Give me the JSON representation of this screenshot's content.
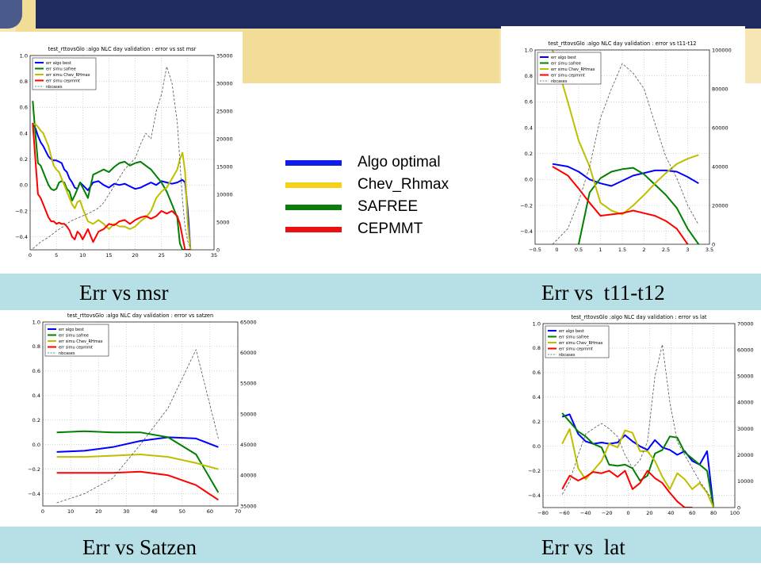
{
  "colors": {
    "algo_best": "#0000ff",
    "safree": "#008000",
    "chev": "#bfbf00",
    "cepmmt": "#ff0000",
    "nbcases": "#555555",
    "caption_bar": "#b7dfe6",
    "legend_blue": "#0d1ee8",
    "legend_yellow": "#f5d21a",
    "legend_green": "#0b7d0b",
    "legend_red": "#e81010"
  },
  "captions": {
    "msr": "Err vs msr",
    "t11": "Err vs  t11-t12",
    "satzen": "Err vs Satzen",
    "lat": "Err vs  lat"
  },
  "legend": {
    "items": [
      {
        "label": "Algo optimal",
        "color": "#0d1ee8"
      },
      {
        "label": "Chev_Rhmax",
        "color": "#f5d21a"
      },
      {
        "label": "SAFREE",
        "color": "#0b7d0b"
      },
      {
        "label": "CEPMMT",
        "color": "#e81010"
      }
    ]
  },
  "chart_data": [
    {
      "id": "msr",
      "type": "line",
      "title": "test_rttovsGlo :algo NLC day validation : error vs sst msr",
      "xlim": [
        0,
        35
      ],
      "ylim": [
        -0.5,
        1.0
      ],
      "y2lim": [
        0,
        35000
      ],
      "xticks": [
        0,
        5,
        10,
        15,
        20,
        25,
        30,
        35
      ],
      "yticks": [
        -0.4,
        -0.2,
        0.0,
        0.2,
        0.4,
        0.6,
        0.8,
        1.0
      ],
      "y2ticks": [
        0,
        5000,
        10000,
        15000,
        20000,
        25000,
        30000,
        35000
      ],
      "legend_labels": [
        "err algo best",
        "err simu safree",
        "err simu Chev_RHmax",
        "err simu cepmmt",
        "nbcases"
      ],
      "x": [
        0.5,
        1,
        1.5,
        2,
        2.5,
        3,
        3.5,
        4,
        4.5,
        5,
        5.5,
        6,
        6.5,
        7,
        7.5,
        8,
        8.5,
        9,
        9.5,
        10,
        11,
        12,
        13,
        14,
        15,
        16,
        17,
        18,
        19,
        20,
        21,
        22,
        23,
        24,
        25,
        26,
        27,
        28,
        28.5,
        29,
        29.5,
        30,
        30.5
      ],
      "series": [
        {
          "name": "err algo best",
          "key": "algo_best",
          "values": [
            0.47,
            0.44,
            0.38,
            0.33,
            0.3,
            0.26,
            0.22,
            0.2,
            0.19,
            0.19,
            0.18,
            0.17,
            0.12,
            0.1,
            0.05,
            0.02,
            -0.02,
            -0.03,
            0.02,
            0.0,
            -0.04,
            0.02,
            0.03,
            0.0,
            -0.02,
            0.01,
            0.0,
            0.01,
            -0.01,
            -0.03,
            -0.02,
            0.0,
            0.02,
            0.0,
            0.03,
            0.02,
            0.01,
            0.02,
            0.03,
            0.04,
            0.02,
            -0.2,
            -0.5
          ]
        },
        {
          "name": "err simu safree",
          "key": "safree",
          "values": [
            0.65,
            0.4,
            0.17,
            0.15,
            0.1,
            0.05,
            0.0,
            -0.03,
            -0.04,
            -0.03,
            0.02,
            0.03,
            0.02,
            -0.03,
            -0.05,
            -0.12,
            -0.08,
            -0.03,
            0.02,
            -0.02,
            -0.1,
            0.08,
            0.1,
            0.12,
            0.1,
            0.14,
            0.17,
            0.18,
            0.15,
            0.17,
            0.18,
            0.15,
            0.12,
            0.07,
            0.02,
            -0.05,
            -0.15,
            -0.25,
            -0.45,
            -0.5,
            -0.5,
            -0.5,
            -0.5
          ]
        },
        {
          "name": "err simu Chev_RHmax",
          "key": "chev",
          "values": [
            0.47,
            0.47,
            0.45,
            0.42,
            0.4,
            0.35,
            0.3,
            0.22,
            0.15,
            0.12,
            0.1,
            0.05,
            0.0,
            -0.05,
            -0.1,
            -0.15,
            -0.18,
            -0.13,
            -0.12,
            -0.18,
            -0.28,
            -0.3,
            -0.27,
            -0.3,
            -0.34,
            -0.3,
            -0.32,
            -0.32,
            -0.34,
            -0.32,
            -0.28,
            -0.25,
            -0.2,
            -0.1,
            -0.05,
            -0.02,
            0.05,
            0.12,
            0.2,
            0.25,
            0.1,
            -0.3,
            -0.5
          ]
        },
        {
          "name": "err simu cepmmt",
          "key": "cepmmt",
          "values": [
            0.48,
            0.2,
            -0.07,
            -0.1,
            -0.15,
            -0.2,
            -0.25,
            -0.28,
            -0.28,
            -0.3,
            -0.29,
            -0.3,
            -0.3,
            -0.32,
            -0.35,
            -0.4,
            -0.42,
            -0.36,
            -0.38,
            -0.42,
            -0.34,
            -0.44,
            -0.36,
            -0.34,
            -0.3,
            -0.31,
            -0.28,
            -0.27,
            -0.3,
            -0.27,
            -0.25,
            -0.24,
            -0.26,
            -0.24,
            -0.2,
            -0.22,
            -0.2,
            -0.24,
            -0.3,
            -0.4,
            -0.5,
            -0.5,
            -0.5
          ]
        },
        {
          "name": "nbcases",
          "key": "nbcases",
          "axis": "right",
          "values": [
            200,
            600,
            1000,
            1400,
            1700,
            2000,
            2300,
            2600,
            3000,
            3400,
            3700,
            4000,
            4300,
            4700,
            5000,
            5300,
            5500,
            5700,
            5900,
            6100,
            6500,
            7000,
            7500,
            8500,
            10000,
            11500,
            13000,
            14500,
            15500,
            16500,
            19000,
            21000,
            20000,
            25000,
            28000,
            33000,
            30000,
            23000,
            16000,
            9000,
            4000,
            1500,
            500
          ]
        }
      ]
    },
    {
      "id": "t11",
      "type": "line",
      "title": "test_rttovsGlo :algo NLC day validation : error vs t11-t12",
      "xlim": [
        -0.5,
        3.5
      ],
      "ylim": [
        -0.5,
        1.0
      ],
      "y2lim": [
        0,
        100000
      ],
      "xticks": [
        -0.5,
        0.0,
        0.5,
        1.0,
        1.5,
        2.0,
        2.5,
        3.0,
        3.5
      ],
      "yticks": [
        -0.4,
        -0.2,
        0.0,
        0.2,
        0.4,
        0.6,
        0.8,
        1.0
      ],
      "y2ticks": [
        0,
        20000,
        40000,
        60000,
        80000,
        100000
      ],
      "legend_labels": [
        "err algo best",
        "err simu safree",
        "err simu Chev_RHmax",
        "err simu cepmmt",
        "nbcases"
      ],
      "x": [
        -0.1,
        0.25,
        0.5,
        0.75,
        1.0,
        1.25,
        1.5,
        1.75,
        2.0,
        2.25,
        2.5,
        2.75,
        3.0,
        3.25
      ],
      "series": [
        {
          "name": "err algo best",
          "key": "algo_best",
          "values": [
            0.12,
            0.1,
            0.06,
            0.0,
            -0.03,
            -0.05,
            -0.01,
            0.03,
            0.05,
            0.07,
            0.07,
            0.06,
            0.02,
            -0.03
          ]
        },
        {
          "name": "err simu safree",
          "key": "safree",
          "values": [
            null,
            -0.6,
            -0.5,
            -0.1,
            0.01,
            0.06,
            0.08,
            0.09,
            0.04,
            -0.04,
            -0.12,
            -0.22,
            -0.38,
            -0.5
          ]
        },
        {
          "name": "err simu Chev_RHmax",
          "key": "chev",
          "values": [
            1.0,
            0.6,
            0.3,
            0.1,
            -0.18,
            -0.24,
            -0.27,
            -0.2,
            -0.12,
            -0.03,
            0.05,
            0.12,
            0.16,
            0.19
          ]
        },
        {
          "name": "err simu cepmmt",
          "key": "cepmmt",
          "values": [
            0.1,
            0.03,
            -0.07,
            -0.18,
            -0.28,
            -0.27,
            -0.26,
            -0.24,
            -0.26,
            -0.28,
            -0.32,
            -0.38,
            -0.5,
            null
          ]
        },
        {
          "name": "nbcases",
          "key": "nbcases",
          "axis": "right",
          "values": [
            0,
            8000,
            22000,
            40000,
            65000,
            80000,
            93000,
            88000,
            80000,
            62000,
            45000,
            34000,
            20000,
            10000
          ]
        }
      ]
    },
    {
      "id": "satzen",
      "type": "line",
      "title": "test_rttovsGlo :algo NLC day validation : error vs satzen",
      "xlim": [
        0,
        70
      ],
      "ylim": [
        -0.5,
        1.0
      ],
      "y2lim": [
        35000,
        65000
      ],
      "xticks": [
        0,
        10,
        20,
        30,
        40,
        50,
        60,
        70
      ],
      "yticks": [
        -0.4,
        -0.2,
        0.0,
        0.2,
        0.4,
        0.6,
        0.8,
        1.0
      ],
      "y2ticks": [
        35000,
        40000,
        45000,
        50000,
        55000,
        60000,
        65000
      ],
      "legend_labels": [
        "err algo best",
        "err simu safree",
        "err simu Chev_RHmax",
        "err simu cepmmt",
        "nbcases"
      ],
      "x": [
        5,
        15,
        25,
        35,
        45,
        55,
        63
      ],
      "series": [
        {
          "name": "err algo best",
          "key": "algo_best",
          "values": [
            -0.06,
            -0.05,
            -0.02,
            0.03,
            0.06,
            0.05,
            -0.02
          ]
        },
        {
          "name": "err simu safree",
          "key": "safree",
          "values": [
            0.1,
            0.11,
            0.1,
            0.1,
            0.06,
            -0.08,
            -0.39
          ]
        },
        {
          "name": "err simu Chev_RHmax",
          "key": "chev",
          "values": [
            -0.1,
            -0.1,
            -0.09,
            -0.08,
            -0.1,
            -0.15,
            -0.2
          ]
        },
        {
          "name": "err simu cepmmt",
          "key": "cepmmt",
          "values": [
            -0.23,
            -0.23,
            -0.23,
            -0.22,
            -0.25,
            -0.33,
            -0.45
          ]
        },
        {
          "name": "nbcases",
          "key": "nbcases",
          "axis": "right",
          "values": [
            35500,
            37000,
            39500,
            45000,
            51000,
            60500,
            46000
          ]
        }
      ]
    },
    {
      "id": "lat",
      "type": "line",
      "title": "test_rttovsGlo :algo NLC day validation : error vs lat",
      "xlim": [
        -80,
        100
      ],
      "ylim": [
        -0.5,
        1.0
      ],
      "y2lim": [
        0,
        70000
      ],
      "xticks": [
        -80,
        -60,
        -40,
        -20,
        0,
        20,
        40,
        60,
        80,
        100
      ],
      "yticks": [
        -0.4,
        -0.2,
        0.0,
        0.2,
        0.4,
        0.6,
        0.8,
        1.0
      ],
      "y2ticks": [
        0,
        10000,
        20000,
        30000,
        40000,
        50000,
        60000,
        70000
      ],
      "legend_labels": [
        "err algo best",
        "err simu safree",
        "err simu Chev_RHmax",
        "err simu cepmmt",
        "nbcases"
      ],
      "x": [
        -62,
        -55,
        -47,
        -40,
        -33,
        -25,
        -18,
        -10,
        -3,
        4,
        11,
        18,
        25,
        32,
        39,
        46,
        53,
        60,
        67,
        74,
        80
      ],
      "series": [
        {
          "name": "err algo best",
          "key": "algo_best",
          "values": [
            0.24,
            0.26,
            0.1,
            0.04,
            0.02,
            0.03,
            0.02,
            0.03,
            0.09,
            0.04,
            0.0,
            -0.03,
            0.05,
            -0.01,
            -0.03,
            -0.07,
            -0.04,
            -0.12,
            -0.15,
            -0.04,
            -0.5
          ]
        },
        {
          "name": "err simu safree",
          "key": "safree",
          "values": [
            0.27,
            0.2,
            0.12,
            0.08,
            0.02,
            -0.01,
            -0.15,
            -0.16,
            -0.15,
            -0.18,
            -0.28,
            -0.24,
            -0.06,
            -0.03,
            0.08,
            0.07,
            -0.05,
            -0.1,
            -0.15,
            -0.2,
            -0.5
          ]
        },
        {
          "name": "err simu Chev_RHmax",
          "key": "chev",
          "values": [
            0.02,
            0.14,
            -0.18,
            -0.27,
            -0.2,
            -0.12,
            0.02,
            -0.01,
            0.13,
            0.11,
            -0.04,
            -0.04,
            -0.12,
            -0.25,
            -0.35,
            -0.22,
            -0.27,
            -0.35,
            -0.3,
            -0.38,
            -0.5
          ]
        },
        {
          "name": "err simu cepmmt",
          "key": "cepmmt",
          "values": [
            -0.35,
            -0.24,
            -0.28,
            -0.25,
            -0.21,
            -0.22,
            -0.2,
            -0.25,
            -0.2,
            -0.35,
            -0.3,
            -0.2,
            -0.26,
            -0.3,
            -0.38,
            -0.45,
            -0.5,
            -0.5,
            null,
            null,
            null
          ]
        },
        {
          "name": "nbcases",
          "key": "nbcases",
          "axis": "right",
          "values": [
            5000,
            10000,
            20000,
            28000,
            30000,
            32000,
            30000,
            27000,
            20000,
            15000,
            18000,
            25000,
            50000,
            62000,
            40000,
            25000,
            20000,
            15000,
            10000,
            6000,
            2000
          ]
        }
      ]
    }
  ]
}
